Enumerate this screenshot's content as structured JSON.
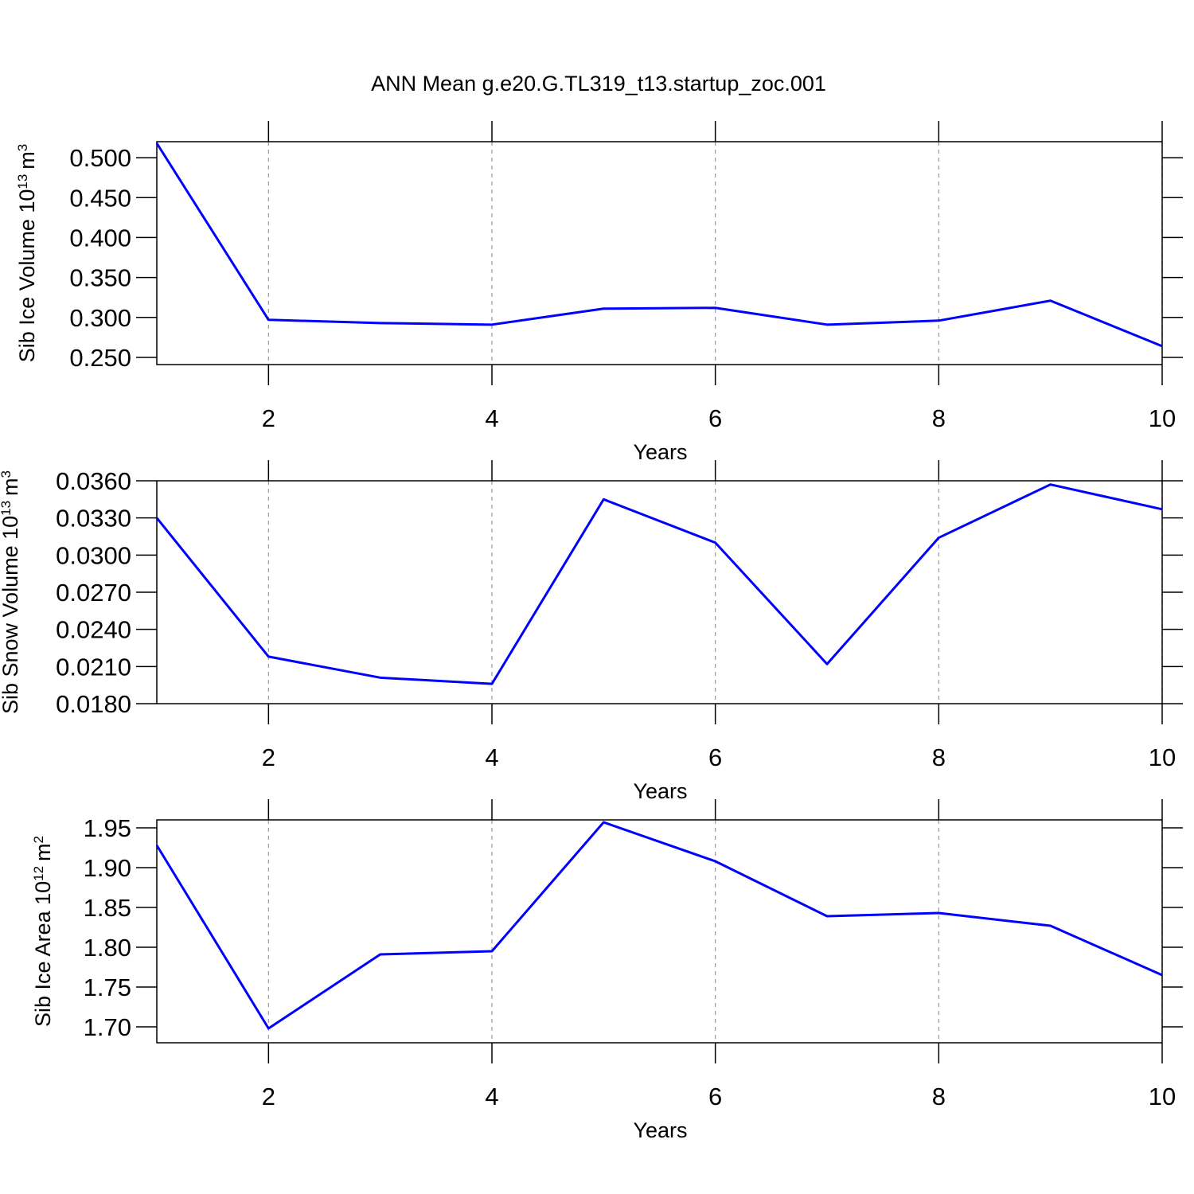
{
  "title": "ANN Mean g.e20.G.TL319_t13.startup_zoc.001",
  "chart_data": [
    {
      "type": "line",
      "xlabel": "Years",
      "ylabel": [
        "Sib Ice Volume 10",
        "13",
        "m",
        "3"
      ],
      "x": [
        1,
        2,
        3,
        4,
        5,
        6,
        7,
        8,
        9,
        10
      ],
      "series": [
        {
          "color": "#0000ff",
          "values": [
            0.518,
            0.297,
            0.293,
            0.291,
            0.311,
            0.312,
            0.291,
            0.296,
            0.321,
            0.264
          ]
        }
      ],
      "xlim": [
        1,
        10
      ],
      "xticks": [
        2,
        4,
        6,
        8,
        10
      ],
      "ylim": [
        0.241,
        0.52
      ],
      "yticks": [
        {
          "value": 0.25,
          "label": "0.250"
        },
        {
          "value": 0.3,
          "label": "0.300"
        },
        {
          "value": 0.35,
          "label": "0.350"
        },
        {
          "value": 0.4,
          "label": "0.400"
        },
        {
          "value": 0.45,
          "label": "0.450"
        },
        {
          "value": 0.5,
          "label": "0.500"
        }
      ],
      "xgrid": true
    },
    {
      "type": "line",
      "xlabel": "Years",
      "ylabel": [
        "Sib Snow Volume 10",
        "13",
        "m",
        "3"
      ],
      "x": [
        1,
        2,
        3,
        4,
        5,
        6,
        7,
        8,
        9,
        10
      ],
      "series": [
        {
          "color": "#0000ff",
          "values": [
            0.033,
            0.0218,
            0.0201,
            0.0196,
            0.0345,
            0.031,
            0.0212,
            0.0314,
            0.0357,
            0.0337
          ]
        }
      ],
      "xlim": [
        1,
        10
      ],
      "xticks": [
        2,
        4,
        6,
        8,
        10
      ],
      "ylim": [
        0.018,
        0.036
      ],
      "yticks": [
        {
          "value": 0.018,
          "label": "0.0180"
        },
        {
          "value": 0.021,
          "label": "0.0210"
        },
        {
          "value": 0.024,
          "label": "0.0240"
        },
        {
          "value": 0.027,
          "label": "0.0270"
        },
        {
          "value": 0.03,
          "label": "0.0300"
        },
        {
          "value": 0.033,
          "label": "0.0330"
        },
        {
          "value": 0.036,
          "label": "0.0360"
        }
      ],
      "xgrid": true
    },
    {
      "type": "line",
      "xlabel": "Years",
      "ylabel": [
        "Sib Ice Area 10",
        "12",
        "m",
        "2"
      ],
      "x": [
        1,
        2,
        3,
        4,
        5,
        6,
        7,
        8,
        9,
        10
      ],
      "series": [
        {
          "color": "#0000ff",
          "values": [
            1.928,
            1.698,
            1.791,
            1.795,
            1.957,
            1.908,
            1.839,
            1.843,
            1.827,
            1.765
          ]
        }
      ],
      "xlim": [
        1,
        10
      ],
      "xticks": [
        2,
        4,
        6,
        8,
        10
      ],
      "ylim": [
        1.68,
        1.96
      ],
      "yticks": [
        {
          "value": 1.7,
          "label": "1.70"
        },
        1.75,
        {
          "value": 1.8,
          "label": "1.80"
        },
        1.85,
        {
          "value": 1.9,
          "label": "1.90"
        },
        1.95
      ],
      "xgrid": true
    }
  ]
}
